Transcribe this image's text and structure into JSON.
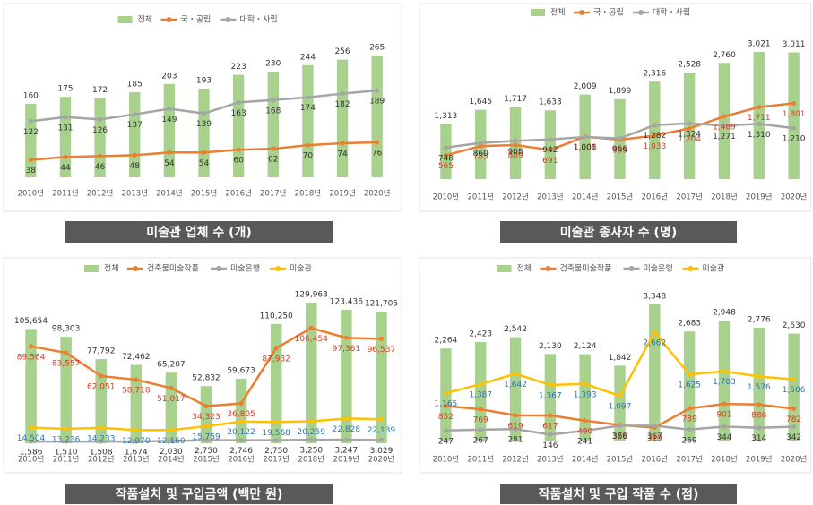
{
  "chart_data": [
    {
      "type": "combo",
      "title": "미술관 업체 수 (개)",
      "categories": [
        "2010년",
        "2011년",
        "2012년",
        "2013년",
        "2014년",
        "2015년",
        "2016년",
        "2017년",
        "2018년",
        "2019년",
        "2020년"
      ],
      "series": [
        {
          "name": "전체",
          "kind": "bar",
          "color": "#a9d18e",
          "label_color": "#333333",
          "values": [
            160,
            175,
            172,
            185,
            203,
            193,
            223,
            230,
            244,
            256,
            265
          ]
        },
        {
          "name": "국・공립",
          "kind": "line",
          "color": "#ed7d31",
          "label_color": "#333333",
          "values": [
            38,
            44,
            46,
            48,
            54,
            54,
            60,
            62,
            70,
            74,
            76
          ]
        },
        {
          "name": "대학・사립",
          "kind": "line",
          "color": "#a5a5a5",
          "label_color": "#333333",
          "values": [
            122,
            131,
            126,
            137,
            149,
            139,
            163,
            168,
            174,
            182,
            189
          ]
        }
      ]
    },
    {
      "type": "combo",
      "title": "미술관 종사자 수 (명)",
      "categories": [
        "2010년",
        "2011년",
        "2012년",
        "2013년",
        "2014년",
        "2015년",
        "2016년",
        "2017년",
        "2018년",
        "2019년",
        "2020년"
      ],
      "series": [
        {
          "name": "전체",
          "kind": "bar",
          "color": "#a9d18e",
          "label_color": "#333333",
          "values": [
            1313,
            1645,
            1717,
            1633,
            2009,
            1899,
            2316,
            2528,
            2760,
            3021,
            3011
          ],
          "value_labels": [
            "1,313",
            "1,645",
            "1,717",
            "1,633",
            "2,009",
            "1,899",
            "2,316",
            "2,528",
            "2,760",
            "3,021",
            "3,011"
          ]
        },
        {
          "name": "국・공립",
          "kind": "line",
          "color": "#ed7d31",
          "label_color": "#e03a1e",
          "values": [
            565,
            785,
            809,
            691,
            1008,
            933,
            1033,
            1204,
            1489,
            1711,
            1801
          ],
          "value_labels": [
            "565",
            "785",
            "809",
            "691",
            "1,008",
            "933",
            "1,033",
            "1,204",
            "1,489",
            "1,711",
            "1,801"
          ]
        },
        {
          "name": "대학・사립",
          "kind": "line",
          "color": "#a5a5a5",
          "label_color": "#333333",
          "values": [
            748,
            860,
            908,
            942,
            1001,
            966,
            1282,
            1324,
            1271,
            1310,
            1210
          ],
          "value_labels": [
            "748",
            "860",
            "908",
            "942",
            "1,001",
            "966",
            "1,282",
            "1,324",
            "1,271",
            "1,310",
            "1,210"
          ]
        }
      ]
    },
    {
      "type": "combo",
      "title": "작품설치 및 구입금액 (백만 원)",
      "categories": [
        "2010년",
        "2011년",
        "2012년",
        "2013년",
        "2014년",
        "2015년",
        "2016년",
        "2017년",
        "2018년",
        "2019년",
        "2020년"
      ],
      "series": [
        {
          "name": "전체",
          "kind": "bar",
          "color": "#a9d18e",
          "label_color": "#333333",
          "values": [
            105654,
            98303,
            77792,
            72462,
            65207,
            52832,
            59673,
            110250,
            129963,
            123436,
            121705
          ],
          "value_labels": [
            "105,654",
            "98,303",
            "77,792",
            "72,462",
            "65,207",
            "52,832",
            "59,673",
            "110,250",
            "129,963",
            "123,436",
            "121,705"
          ]
        },
        {
          "name": "건축물미술작품",
          "kind": "line",
          "color": "#ed7d31",
          "label_color": "#e03a1e",
          "values": [
            89564,
            83557,
            62051,
            58718,
            51017,
            34323,
            36805,
            87932,
            106454,
            97361,
            96537
          ],
          "value_labels": [
            "89,564",
            "83,557",
            "62,051",
            "58,718",
            "51,017",
            "34,323",
            "36,805",
            "87,932",
            "106,454",
            "97,361",
            "96,537"
          ]
        },
        {
          "name": "미술은행",
          "kind": "line",
          "color": "#a5a5a5",
          "label_color": "#333333",
          "values": [
            1586,
            1510,
            1508,
            1674,
            2030,
            2750,
            2746,
            2750,
            3250,
            3247,
            3029
          ],
          "value_labels": [
            "1,586",
            "1,510",
            "1,508",
            "1,674",
            "2,030",
            "2,750",
            "2,746",
            "2,750",
            "3,250",
            "3,247",
            "3,029"
          ]
        },
        {
          "name": "미술관",
          "kind": "line",
          "color": "#ffc000",
          "label_color": "#2e75b6",
          "values": [
            14504,
            13236,
            14233,
            12070,
            12160,
            15759,
            20122,
            19568,
            20259,
            22828,
            22139
          ],
          "value_labels": [
            "14,504",
            "13,236",
            "14,233",
            "12,070",
            "12,160",
            "15,759",
            "20,122",
            "19,568",
            "20,259",
            "22,828",
            "22,139"
          ]
        }
      ]
    },
    {
      "type": "combo",
      "title": "작품설치 및 구입 작품 수 (점)",
      "categories": [
        "2010년",
        "2011년",
        "2012년",
        "2013년",
        "2014년",
        "2015년",
        "2016년",
        "2017년",
        "2018년",
        "2019년",
        "2020년"
      ],
      "series": [
        {
          "name": "전체",
          "kind": "bar",
          "color": "#a9d18e",
          "label_color": "#333333",
          "values": [
            2264,
            2423,
            2542,
            2130,
            2124,
            1842,
            3348,
            2683,
            2948,
            2776,
            2630
          ],
          "value_labels": [
            "2,264",
            "2,423",
            "2,542",
            "2,130",
            "2,124",
            "1,842",
            "3,348",
            "2,683",
            "2,948",
            "2,776",
            "2,630"
          ]
        },
        {
          "name": "건축물미술작품",
          "kind": "line",
          "color": "#ed7d31",
          "label_color": "#e03a1e",
          "values": [
            852,
            769,
            619,
            617,
            490,
            379,
            319,
            789,
            901,
            886,
            782
          ]
        },
        {
          "name": "미술은행",
          "kind": "line",
          "color": "#a5a5a5",
          "label_color": "#333333",
          "values": [
            247,
            267,
            281,
            146,
            241,
            366,
            367,
            269,
            344,
            314,
            342
          ]
        },
        {
          "name": "미술관",
          "kind": "line",
          "color": "#ffc000",
          "label_color": "#2e75b6",
          "values": [
            1165,
            1387,
            1642,
            1367,
            1393,
            1097,
            2662,
            1625,
            1703,
            1576,
            1506
          ],
          "value_labels": [
            "1,165",
            "1,387",
            "1,642",
            "1,367",
            "1,393",
            "1,097",
            "2,662",
            "1,625",
            "1,703",
            "1,576",
            "1,506"
          ]
        }
      ]
    }
  ]
}
